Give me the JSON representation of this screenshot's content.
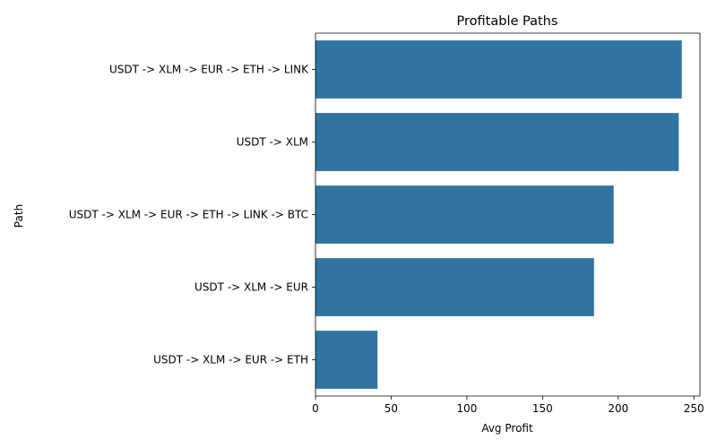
{
  "chart_data": {
    "type": "bar",
    "orientation": "horizontal",
    "title": "Profitable Paths",
    "xlabel": "Avg Profit",
    "ylabel": "Path",
    "categories": [
      "USDT -> XLM -> EUR -> ETH -> LINK",
      "USDT -> XLM",
      "USDT -> XLM -> EUR -> ETH -> LINK -> BTC",
      "USDT -> XLM -> EUR",
      "USDT -> XLM -> EUR -> ETH"
    ],
    "values": [
      242,
      240,
      197,
      184,
      41
    ],
    "xlim": [
      0,
      254
    ],
    "xticks": [
      0,
      50,
      100,
      150,
      200,
      250
    ],
    "grid": false,
    "bar_color": "#3274a1"
  }
}
